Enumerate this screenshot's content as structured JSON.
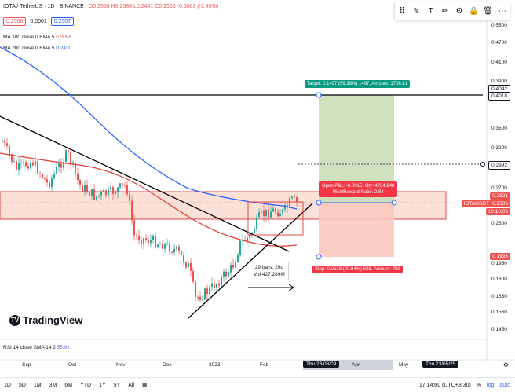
{
  "header": {
    "title": "IOTA / TetherUS · 1D · BINANCE",
    "ohlc": "O0.2568 H0.2588 L0.2441 C0.2506 -0.0063 (-2.45%)",
    "bid": "0.2506",
    "spread": "0.0001",
    "ask": "0.2507"
  },
  "indicators": {
    "ma100_label": "MA 100 close 0 EMA 5",
    "ma100_value": "0.2098",
    "ma200_label": "MA 200 close 0 EMA 5",
    "ma200_value": "0.2430",
    "rsi_label": "RSI 14 close SMA 14 2",
    "rsi_value": "55.92"
  },
  "price_axis": [
    "0.5500",
    "0.4700",
    "0.4100",
    "0.3900",
    "0.3500",
    "0.3200",
    "0.2700",
    "0.2300",
    "0.1950",
    "0.1800",
    "0.1680",
    "0.1560",
    "0.1450"
  ],
  "price_tags": {
    "target_top": "0.4042",
    "target": "0.4018",
    "mid": "0.2992",
    "symbol": "IOTAUSDT",
    "last": "0.2521",
    "current": "0.2506",
    "countdown": "10:16:00",
    "stop": "0.1993"
  },
  "annotations": {
    "target": "Target: 0.1497 (59.38%) 1497, Amount: 1708.81",
    "open_pl": "Open P&L: -0.0015, Qty: 4734.848",
    "risk_reward": "Risk/Reward Ratio: 2.84",
    "stop": "Stop: 0.0528 (20.94%) 528, Amount: 750",
    "bars": "29 bars, 29d",
    "vol": "Vol 427.289M"
  },
  "time_axis": [
    "Sep",
    "Oct",
    "Nov",
    "Dec",
    "2023",
    "Feb",
    "Apr",
    "May"
  ],
  "date_tags": [
    "Thu 23/03/09",
    "Thu 23/05/25"
  ],
  "logo": "TradingView",
  "timeframes": [
    "1D",
    "5D",
    "1M",
    "3M",
    "6M",
    "YTD",
    "1Y",
    "5Y",
    "All"
  ],
  "bottom_right": {
    "time": "17:14:00 (UTC+3:30)",
    "pct": "%",
    "log": "log",
    "auto": "auto"
  },
  "colors": {
    "up": "#26a69a",
    "down": "#ef5350",
    "ma100": "#ef5350",
    "ma200": "#2962ff",
    "target_zone": "#c8dcb5",
    "stop_zone": "#f9c9bf"
  }
}
